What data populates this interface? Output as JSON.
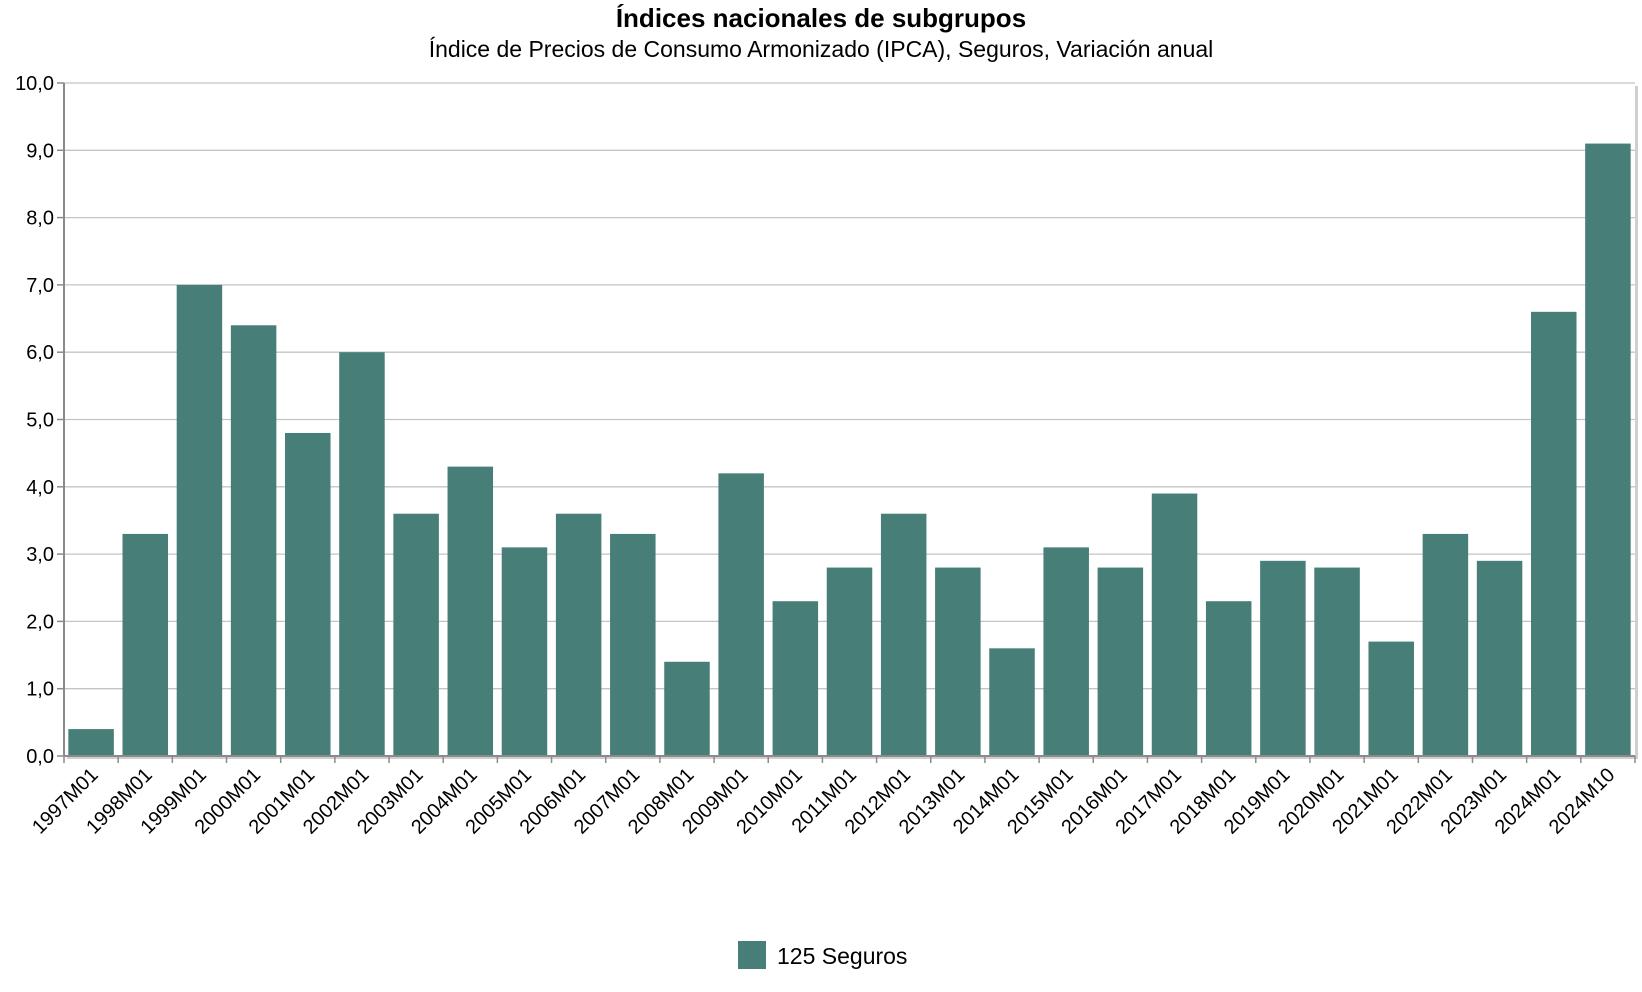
{
  "chart_data": {
    "type": "bar",
    "title": "Índices nacionales de subgrupos",
    "subtitle": "Índice de Precios de Consumo Armonizado (IPCA), Seguros, Variación anual",
    "xlabel": "",
    "ylabel": "",
    "ylim": [
      0,
      10
    ],
    "y_ticks": [
      "0,0",
      "1,0",
      "2,0",
      "3,0",
      "4,0",
      "5,0",
      "6,0",
      "7,0",
      "8,0",
      "9,0",
      "10,0"
    ],
    "grid": true,
    "legend_position": "bottom-center",
    "categories": [
      "1997M01",
      "1998M01",
      "1999M01",
      "2000M01",
      "2001M01",
      "2002M01",
      "2003M01",
      "2004M01",
      "2005M01",
      "2006M01",
      "2007M01",
      "2008M01",
      "2009M01",
      "2010M01",
      "2011M01",
      "2012M01",
      "2013M01",
      "2014M01",
      "2015M01",
      "2016M01",
      "2017M01",
      "2018M01",
      "2019M01",
      "2020M01",
      "2021M01",
      "2022M01",
      "2023M01",
      "2024M01",
      "2024M10"
    ],
    "series": [
      {
        "name": "125 Seguros",
        "color": "#477e78",
        "values": [
          0.4,
          3.3,
          7.0,
          6.4,
          4.8,
          6.0,
          3.6,
          4.3,
          3.1,
          3.6,
          3.3,
          1.4,
          4.2,
          2.3,
          2.8,
          3.6,
          2.8,
          1.6,
          3.1,
          2.8,
          3.9,
          2.3,
          2.9,
          2.8,
          1.7,
          3.3,
          2.9,
          6.6,
          9.1
        ]
      }
    ]
  }
}
